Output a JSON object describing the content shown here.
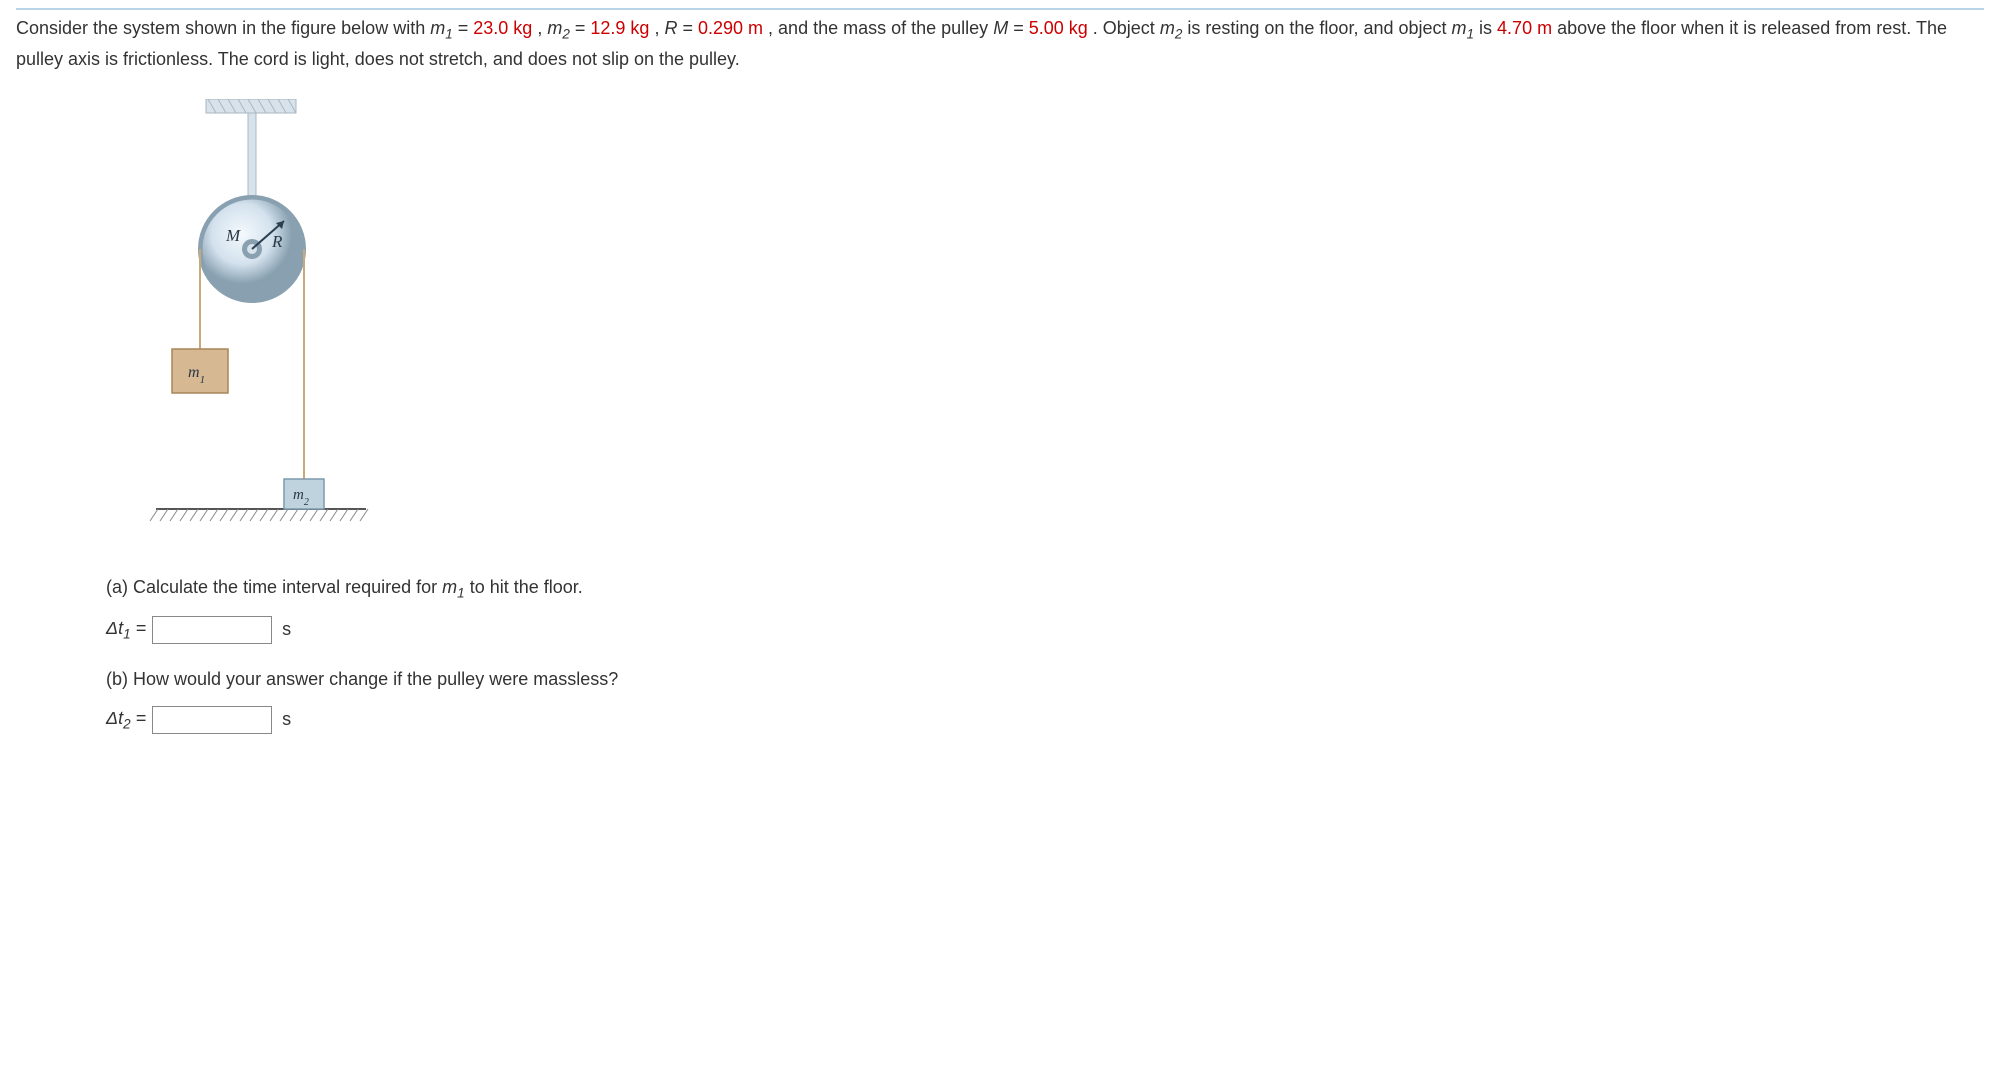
{
  "problem": {
    "intro_a": "Consider the system shown in the figure below with  ",
    "m1_var": "m",
    "m1_sub": "1",
    "eq": " = ",
    "m1_val": "23.0 kg",
    "sep": ",   ",
    "m2_var": "m",
    "m2_sub": "2",
    "m2_val": "12.9 kg",
    "R_var": "R",
    "R_val": "0.290 m",
    "tail1": ",  and the mass of the pulley  ",
    "M_var": "M",
    "M_val": "5.00 kg",
    "tail2": ".  Object ",
    "line2a": " is resting on the floor, and object ",
    "line2b": " is ",
    "height_val": "4.70 m",
    "line2c": " above the floor when it is released from rest. The pulley axis is frictionless. The cord is light, does not stretch, and does not slip on the pulley."
  },
  "figure": {
    "label_M": "M",
    "label_R": "R",
    "label_m1": "m",
    "label_m1_sub": "1",
    "label_m2": "m",
    "label_m2_sub": "2",
    "colors": {
      "support": "#a9b8c4",
      "support_light": "#d8e2ea",
      "pulley_outer": "#88a0b0",
      "pulley_mid": "#d4e2ee",
      "pulley_hilite": "#f4f9fc",
      "cord": "#c9a97a",
      "box_m1_fill": "#d6b893",
      "box_m1_stroke": "#a98659",
      "box_m2_fill": "#bfd3df",
      "box_m2_stroke": "#7d99ab",
      "floor_top": "#555",
      "floor_hatch": "#888",
      "arrow": "#2a4050",
      "text": "#2a3845"
    }
  },
  "parts": {
    "a_text": "(a) Calculate the time interval required for ",
    "a_tail": " to hit the floor.",
    "a_label": "Δt",
    "a_sub": "1",
    "a_unit": "s",
    "b_text": "(b) How would your answer change if the pulley were massless?",
    "b_label": "Δt",
    "b_sub": "2",
    "b_unit": "s"
  }
}
